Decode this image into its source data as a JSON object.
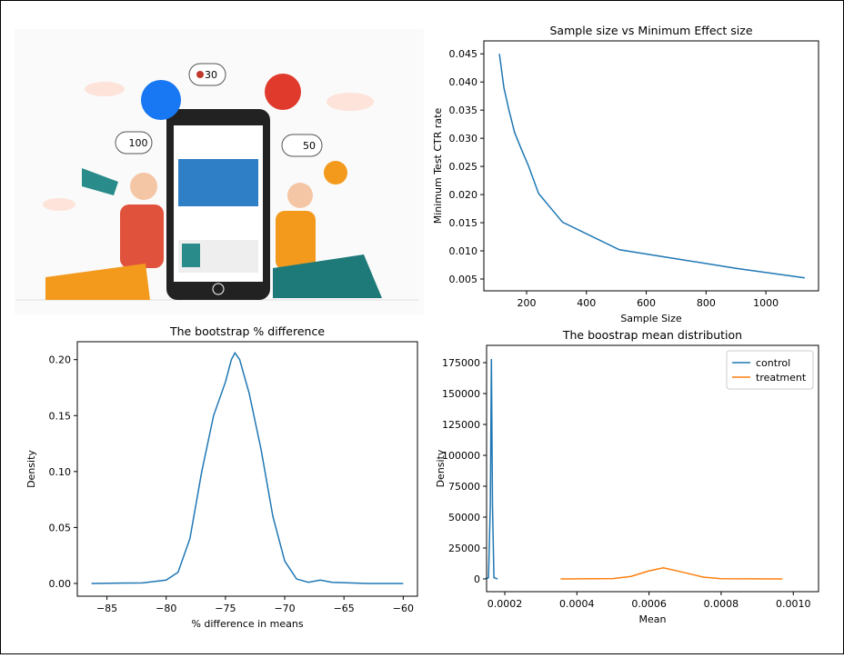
{
  "illustration": {
    "badges": [
      "30",
      "100",
      "50"
    ]
  },
  "chart_data": [
    {
      "type": "line",
      "title": "Sample size vs Minimum Effect size",
      "xlabel": "Sample Size",
      "ylabel": "Minimum Test CTR rate",
      "xlim": [
        57,
        1176
      ],
      "ylim": [
        0.0029,
        0.0473
      ],
      "xticks": [
        200,
        400,
        600,
        800,
        1000
      ],
      "yticks": [
        0.005,
        {
          "value": 0.01,
          "label": "0.010"
        },
        0.015,
        {
          "value": 0.02,
          "label": "0.020"
        },
        0.025,
        {
          "value": 0.03,
          "label": "0.030"
        },
        0.035,
        {
          "value": 0.04,
          "label": "0.040"
        },
        0.045
      ],
      "series": [
        {
          "color": "#1f77b4",
          "x": [
            109,
            124,
            141,
            160,
            183,
            207,
            240,
            320,
            510,
            700,
            900,
            1130
          ],
          "values": [
            0.045,
            0.039,
            0.035,
            0.031,
            0.028,
            0.025,
            0.0202,
            0.0151,
            0.0102,
            0.0086,
            0.0069,
            0.0052
          ]
        }
      ]
    },
    {
      "type": "line",
      "title": "The bootstrap % difference",
      "xlabel": "% difference in means",
      "ylabel": "Density",
      "xlim": [
        -87.5,
        -58.8
      ],
      "ylim": [
        -0.0114,
        0.216
      ],
      "xticks": [
        {
          "value": -85,
          "label": "−85"
        },
        {
          "value": -80,
          "label": "−80"
        },
        {
          "value": -75,
          "label": "−75"
        },
        {
          "value": -70,
          "label": "−70"
        },
        {
          "value": -65,
          "label": "−65"
        },
        {
          "value": -60,
          "label": "−60"
        }
      ],
      "yticks": [
        {
          "value": 0,
          "label": "0.00"
        },
        {
          "value": 0.05,
          "label": "0.05"
        },
        {
          "value": 0.1,
          "label": "0.10"
        },
        {
          "value": 0.15,
          "label": "0.15"
        },
        {
          "value": 0.2,
          "label": "0.20"
        }
      ],
      "series": [
        {
          "color": "#1f77b4",
          "x": [
            -86.3,
            -82,
            -80,
            -79,
            -78,
            -77,
            -76,
            -75,
            -74.5,
            -74.2,
            -73.8,
            -73,
            -72,
            -71,
            -70,
            -69,
            -68,
            -67,
            -66,
            -63,
            -60
          ],
          "values": [
            0,
            0.0005,
            0.003,
            0.01,
            0.04,
            0.1,
            0.15,
            0.18,
            0.2,
            0.206,
            0.2,
            0.17,
            0.12,
            0.06,
            0.02,
            0.004,
            0.001,
            0.003,
            0.001,
            0,
            0
          ]
        }
      ]
    },
    {
      "type": "line",
      "title": "The boostrap mean distribution",
      "xlabel": "Mean",
      "ylabel": "Density",
      "xlim": [
        0.0001496,
        0.00107
      ],
      "ylim": [
        -10300,
        189000
      ],
      "legend": "upper right",
      "xticks": [
        0.0002,
        0.0004,
        0.0006,
        0.0008,
        {
          "value": 0.001,
          "label": "0.0010"
        }
      ],
      "yticks": [
        0,
        25000,
        50000,
        75000,
        100000,
        125000,
        150000,
        175000
      ],
      "series": [
        {
          "name": "control",
          "color": "#1f77b4",
          "x": [
            0.000145,
            0.000155,
            0.00016,
            0.000163,
            0.000166,
            0.00017,
            0.00018
          ],
          "values": [
            0,
            1000,
            60000,
            178000,
            60000,
            1000,
            0
          ]
        },
        {
          "name": "treatment",
          "color": "#ff7f0e",
          "x": [
            0.000355,
            0.0005,
            0.00055,
            0.0006,
            0.00064,
            0.0007,
            0.00075,
            0.0008,
            0.00097
          ],
          "values": [
            0,
            300,
            2000,
            6500,
            9000,
            5000,
            1500,
            200,
            0
          ]
        }
      ]
    }
  ]
}
